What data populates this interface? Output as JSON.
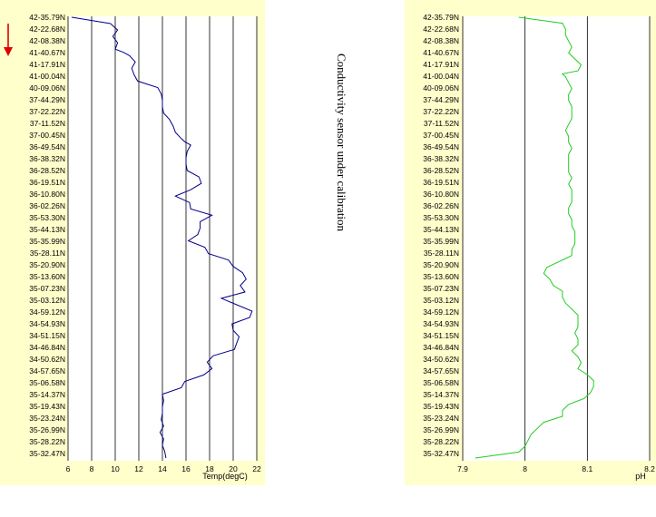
{
  "note": "Conductivity sensor under calibration",
  "arrow_color": "#e00000",
  "chart_data": [
    {
      "type": "line",
      "orientation": "vertical-profile",
      "xlabel": "Temp(degC)",
      "xlim": [
        6,
        22
      ],
      "xticks": [
        "6",
        "8",
        "10",
        "12",
        "14",
        "16",
        "18",
        "20",
        "22"
      ],
      "ylabels": [
        "42-35.79N",
        "42-22.68N",
        "42-08.38N",
        "41-40.67N",
        "41-17.91N",
        "41-00.04N",
        "40-09.06N",
        "37-44.29N",
        "37-22.22N",
        "37-11.52N",
        "37-00.45N",
        "36-49.54N",
        "36-38.32N",
        "36-28.52N",
        "36-19.51N",
        "36-10.80N",
        "36-02.26N",
        "35-53.30N",
        "35-44.13N",
        "35-35.99N",
        "35-28.11N",
        "35-20.90N",
        "35-13.60N",
        "35-07.23N",
        "35-03.12N",
        "34-59.12N",
        "34-54.93N",
        "34-51.15N",
        "34-46.84N",
        "34-50.62N",
        "34-57.65N",
        "35-06.58N",
        "35-14.37N",
        "35-19.43N",
        "35-23.24N",
        "35-26.99N",
        "35-28.22N",
        "35-32.47N"
      ],
      "series": [
        {
          "color": "#00008b",
          "x": [
            6.3,
            9.6,
            10.2,
            9.8,
            10.2,
            10.0,
            10.7,
            11.2,
            11.7,
            11.4,
            11.6,
            11.9,
            13.6,
            13.9,
            14.0,
            14.0,
            14.1,
            14.6,
            14.9,
            15.1,
            15.6,
            15.9,
            16.4,
            16.1,
            16.0,
            16.0,
            16.1,
            17.1,
            17.3,
            16.4,
            15.1,
            16.3,
            16.4,
            18.2,
            17.2,
            17.2,
            17.0,
            16.2,
            17.6,
            17.9,
            19.6,
            20.0,
            20.8,
            21.1,
            20.6,
            21.0,
            19.0,
            20.3,
            21.6,
            21.4,
            19.9,
            20.0,
            20.5,
            20.3,
            20.1,
            18.3,
            17.8,
            18.2,
            17.5,
            15.9,
            15.6,
            14.0,
            14.1,
            14.0,
            14.0,
            13.9,
            14.1,
            13.8,
            14.1,
            14.0,
            14.2,
            14.3
          ],
          "y": [
            0,
            1,
            2,
            3,
            4,
            5,
            5.5,
            6,
            7,
            8,
            9,
            10,
            11,
            12,
            13,
            14,
            15,
            16,
            17,
            18,
            19,
            19.5,
            20,
            21,
            22,
            23,
            24,
            25,
            26,
            27,
            28,
            29,
            30,
            31,
            32,
            33,
            34,
            35,
            36,
            37,
            38,
            39,
            40,
            41,
            42,
            43,
            44,
            45,
            46,
            47,
            48,
            49,
            50,
            51,
            52,
            53,
            54,
            55,
            56,
            57,
            58,
            59,
            60,
            61,
            62,
            63,
            64,
            65,
            66,
            67,
            68,
            69
          ]
        }
      ]
    },
    {
      "type": "line",
      "orientation": "vertical-profile",
      "xlabel": "pH",
      "xlim": [
        7.9,
        8.2
      ],
      "xticks": [
        "7.9",
        "8",
        "8.1",
        "8.2"
      ],
      "ylabels": [
        "42-35.79N",
        "42-22.68N",
        "42-08.38N",
        "41-40.67N",
        "41-17.91N",
        "41-00.04N",
        "40-09.06N",
        "37-44.29N",
        "37-22.22N",
        "37-11.52N",
        "37-00.45N",
        "36-49.54N",
        "36-38.32N",
        "36-28.52N",
        "36-19.51N",
        "36-10.80N",
        "36-02.26N",
        "35-53.30N",
        "35-44.13N",
        "35-35.99N",
        "35-28.11N",
        "35-20.90N",
        "35-13.60N",
        "35-07.23N",
        "35-03.12N",
        "34-59.12N",
        "34-54.93N",
        "34-51.15N",
        "34-46.84N",
        "34-50.62N",
        "34-57.65N",
        "35-06.58N",
        "35-14.37N",
        "35-19.43N",
        "35-23.24N",
        "35-26.99N",
        "35-28.22N",
        "35-32.47N"
      ],
      "series": [
        {
          "color": "#22cc22",
          "x": [
            7.99,
            8.06,
            8.065,
            8.065,
            8.07,
            8.075,
            8.07,
            8.08,
            8.09,
            8.085,
            8.06,
            8.065,
            8.07,
            8.075,
            8.07,
            8.07,
            8.075,
            8.075,
            8.075,
            8.07,
            8.065,
            8.07,
            8.07,
            8.075,
            8.07,
            8.07,
            8.07,
            8.07,
            8.075,
            8.07,
            8.075,
            8.075,
            8.075,
            8.07,
            8.07,
            8.075,
            8.075,
            8.08,
            8.08,
            8.08,
            8.075,
            8.075,
            8.065,
            8.055,
            8.035,
            8.03,
            8.04,
            8.045,
            8.06,
            8.06,
            8.065,
            8.075,
            8.085,
            8.085,
            8.085,
            8.08,
            8.085,
            8.085,
            8.075,
            8.085,
            8.09,
            8.085,
            8.1,
            8.11,
            8.11,
            8.105,
            8.1,
            8.095,
            8.07,
            8.06,
            8.06,
            8.03,
            8.02,
            8.01,
            8.005,
            8.0,
            7.99,
            7.92
          ],
          "y": [
            0,
            1,
            2,
            3,
            4,
            5,
            6,
            7,
            8,
            9,
            9.5,
            10,
            11,
            12,
            13,
            14,
            15,
            16,
            17,
            18,
            19,
            20,
            21,
            22,
            23,
            24,
            25,
            26,
            27,
            28,
            29,
            30,
            31,
            32,
            33,
            34,
            35,
            36,
            37,
            38,
            39,
            40,
            40.5,
            41,
            42,
            43,
            44,
            45,
            46,
            47,
            48,
            49,
            50,
            51,
            52,
            53,
            54,
            55,
            56,
            57,
            58,
            59,
            60,
            61,
            62,
            63,
            63.5,
            64,
            65,
            66,
            67,
            68,
            69,
            70,
            71,
            72,
            73,
            74
          ]
        }
      ]
    }
  ]
}
